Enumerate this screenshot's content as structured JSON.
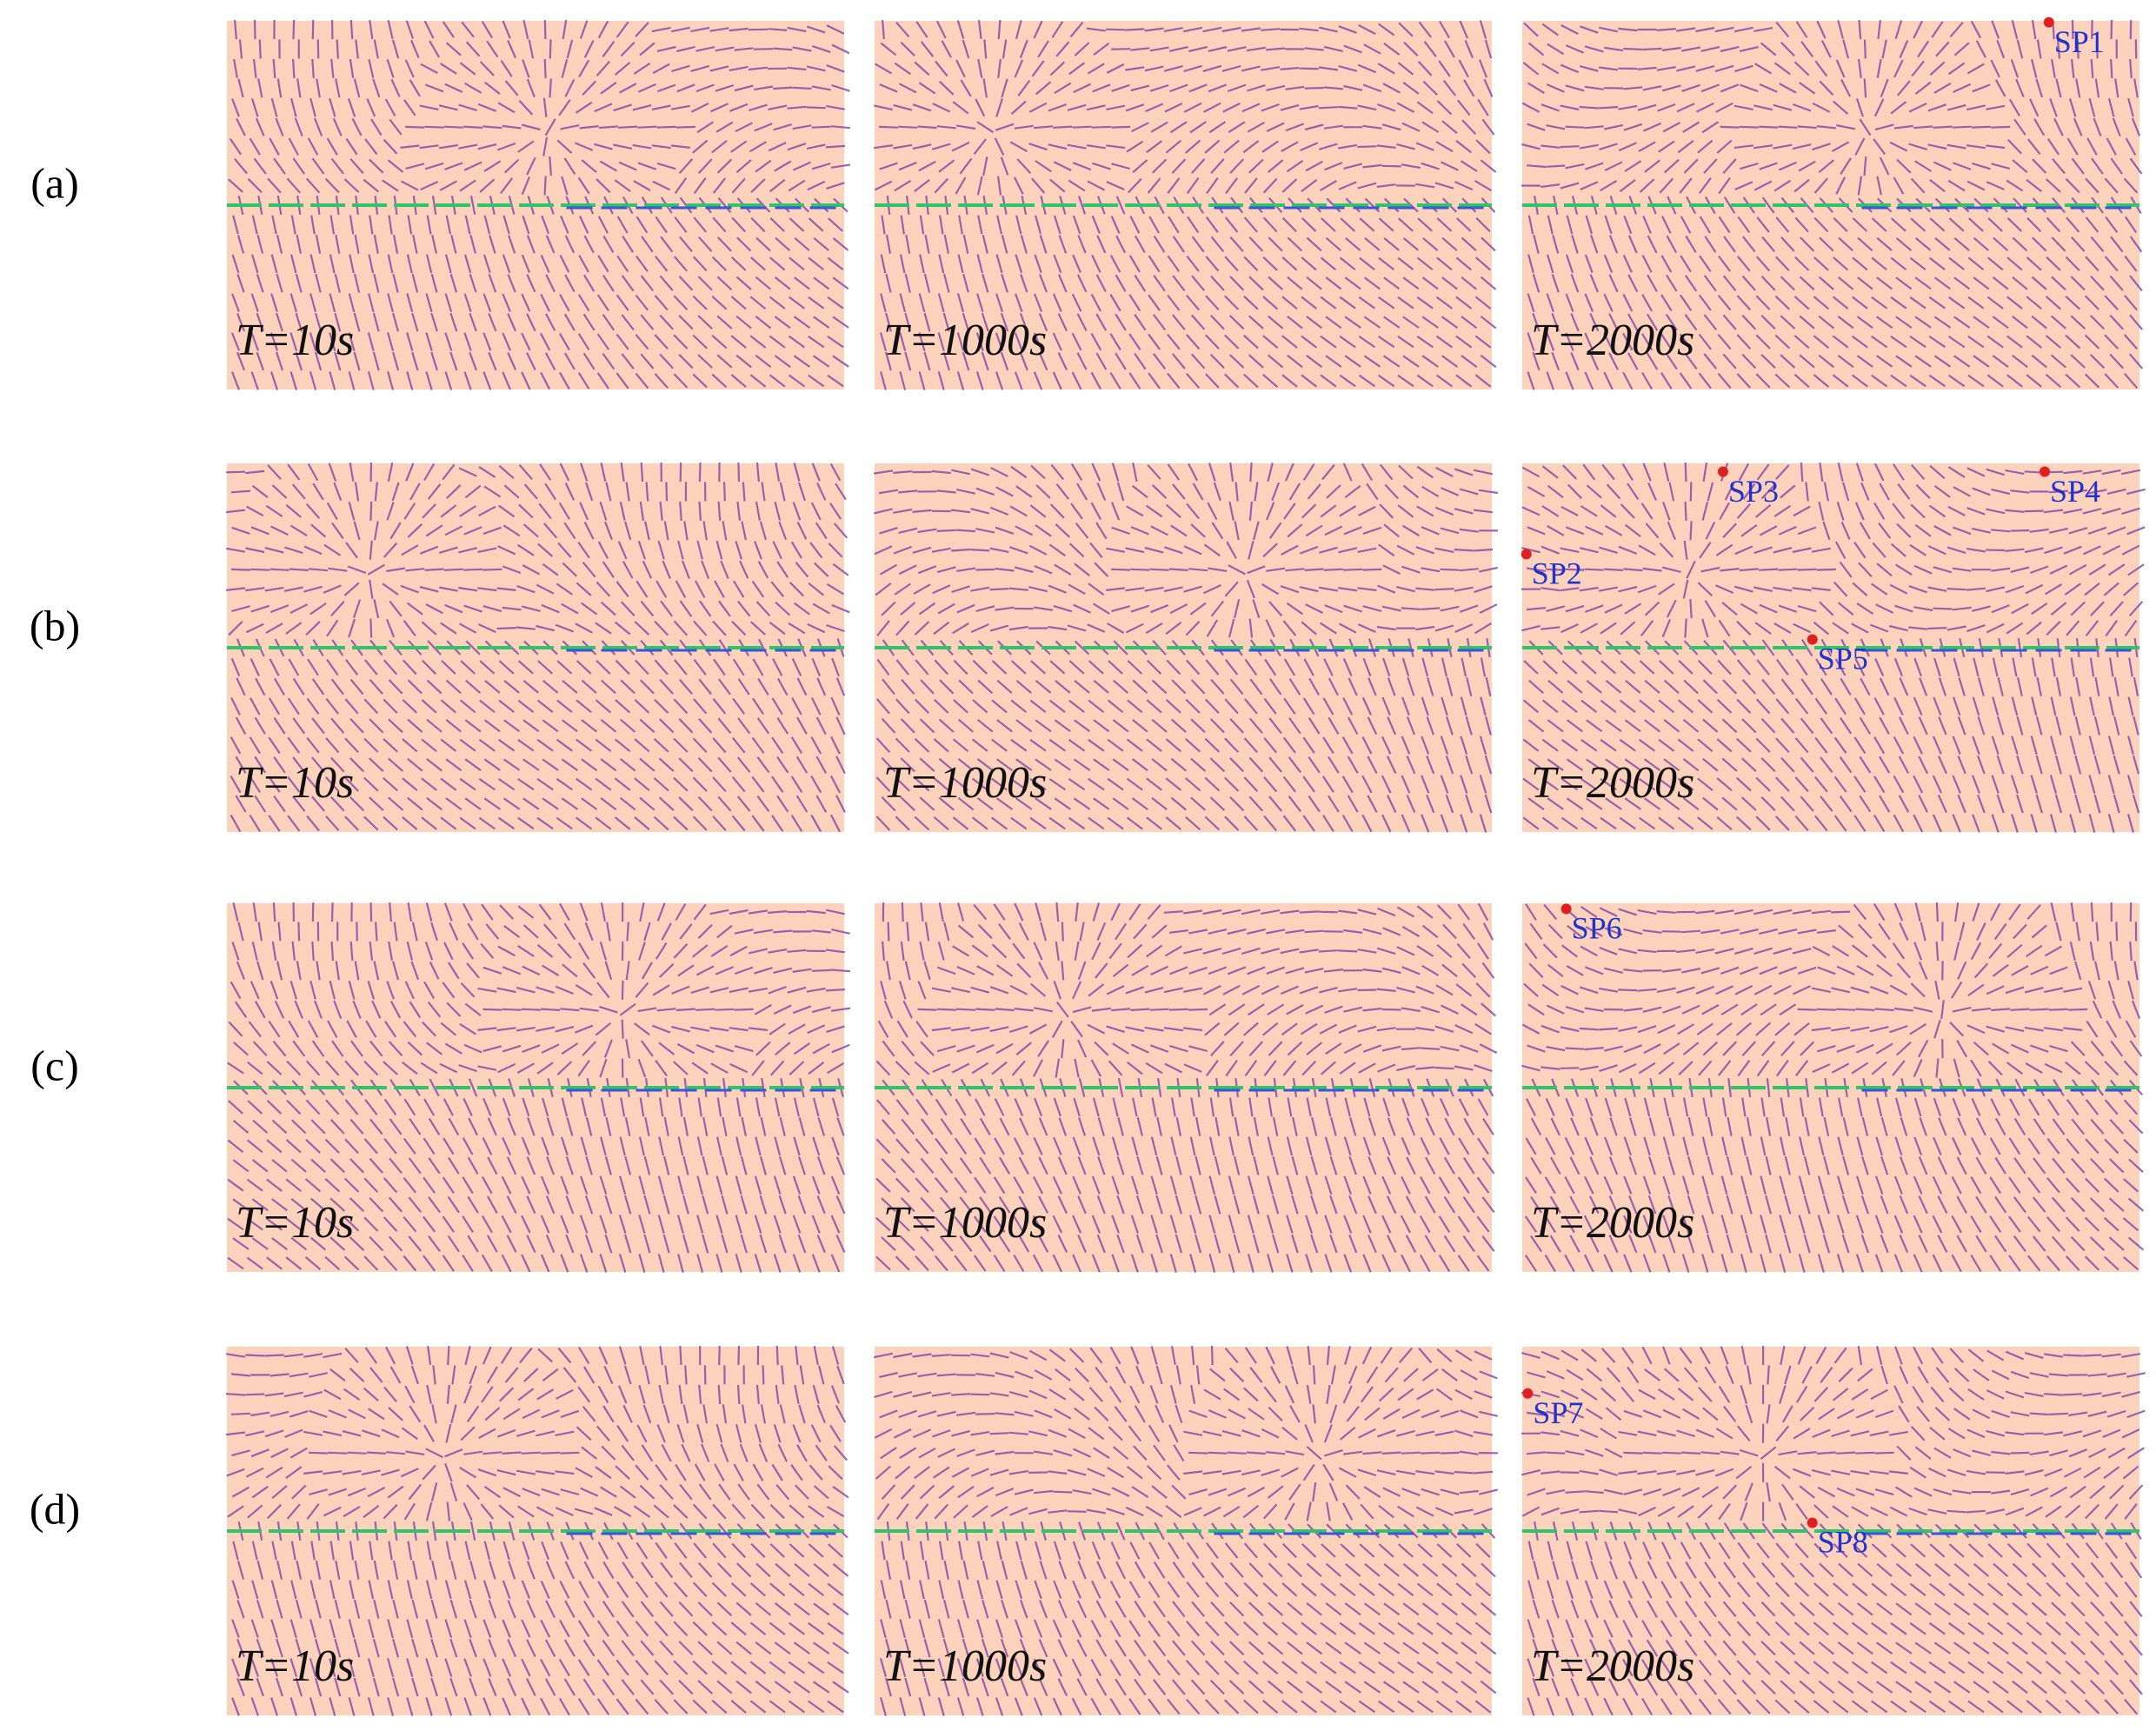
{
  "figure": {
    "rows": [
      {
        "label": "(a)",
        "panels": [
          {
            "time": "T=10s"
          },
          {
            "time": "T=1000s"
          },
          {
            "time": "T=2000s",
            "points": [
              "SP1"
            ]
          }
        ]
      },
      {
        "label": "(b)",
        "panels": [
          {
            "time": "T=10s"
          },
          {
            "time": "T=1000s"
          },
          {
            "time": "T=2000s",
            "points": [
              "SP2",
              "SP3",
              "SP4",
              "SP5"
            ]
          }
        ]
      },
      {
        "label": "(c)",
        "panels": [
          {
            "time": "T=10s"
          },
          {
            "time": "T=1000s"
          },
          {
            "time": "T=2000s",
            "points": [
              "SP6"
            ]
          }
        ]
      },
      {
        "label": "(d)",
        "panels": [
          {
            "time": "T=10s"
          },
          {
            "time": "T=1000s"
          },
          {
            "time": "T=2000s",
            "points": [
              "SP7",
              "SP8"
            ]
          }
        ]
      }
    ]
  }
}
